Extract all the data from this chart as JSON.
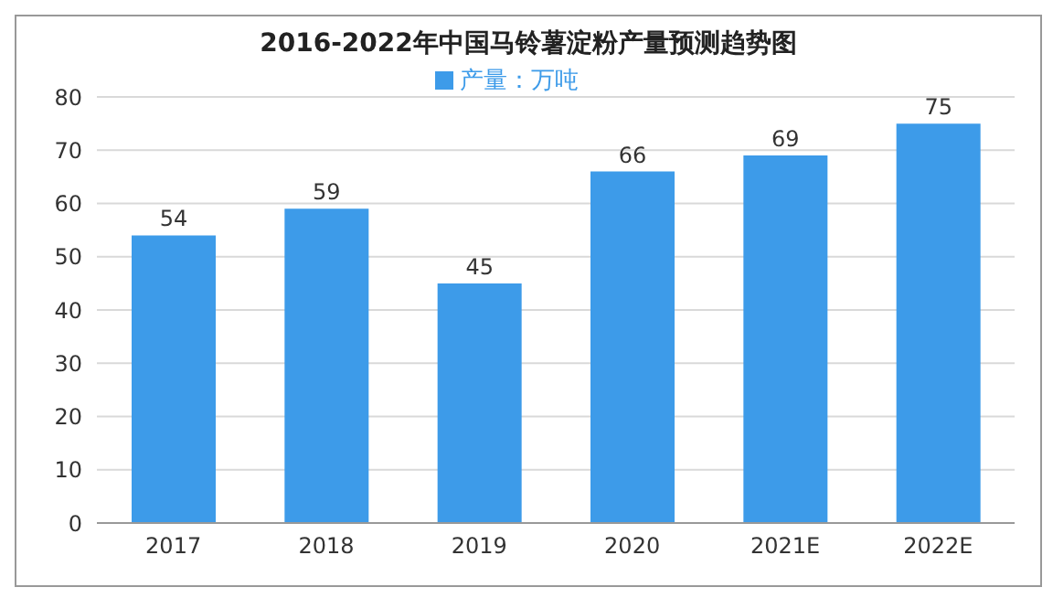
{
  "chart_data": {
    "type": "bar",
    "title": "2016-2022年中国马铃薯淀粉产量预测趋势图",
    "categories": [
      "2017",
      "2018",
      "2019",
      "2020",
      "2021E",
      "2022E"
    ],
    "series": [
      {
        "name": "产量：万吨",
        "color": "#3d9be9",
        "values": [
          54,
          59,
          45,
          66,
          69,
          75
        ]
      }
    ],
    "ylim": [
      0,
      80
    ],
    "yticks": [
      0,
      10,
      20,
      30,
      40,
      50,
      60,
      70,
      80
    ],
    "grid": "y",
    "legend": "top",
    "data_labels": true
  }
}
